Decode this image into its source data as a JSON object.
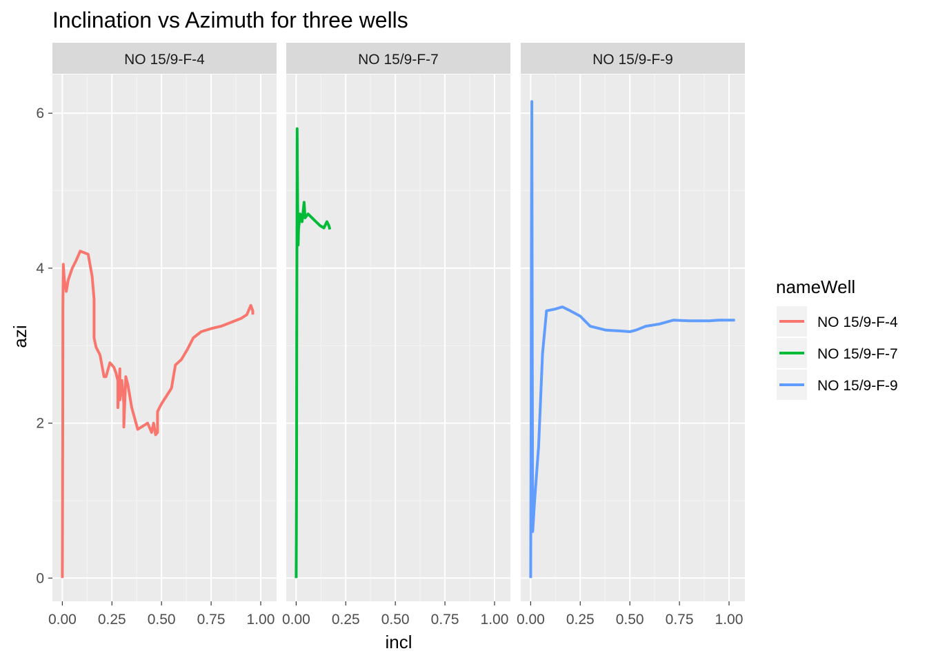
{
  "chart_data": {
    "type": "line",
    "title": "Inclination vs Azimuth for three wells",
    "xlabel": "incl",
    "ylabel": "azi",
    "xlim": [
      -0.05,
      1.08
    ],
    "ylim": [
      -0.3,
      6.5
    ],
    "x_ticks": [
      0,
      0.25,
      0.5,
      0.75,
      1.0
    ],
    "x_tick_labels": [
      "0.00",
      "0.25",
      "0.50",
      "0.75",
      "1.00"
    ],
    "y_ticks": [
      0,
      2,
      4,
      6
    ],
    "y_tick_labels": [
      "0",
      "2",
      "4",
      "6"
    ],
    "grid": true,
    "legend": {
      "title": "nameWell",
      "position": "right"
    },
    "facets": [
      "NO 15/9-F-4",
      "NO 15/9-F-7",
      "NO 15/9-F-9"
    ],
    "series": [
      {
        "name": "NO 15/9-F-4",
        "color": "#F8766D",
        "points": [
          [
            0,
            0
          ],
          [
            0.001,
            1.0
          ],
          [
            0.002,
            2.0
          ],
          [
            0.003,
            3.5
          ],
          [
            0.005,
            4.05
          ],
          [
            0.01,
            3.85
          ],
          [
            0.02,
            3.7
          ],
          [
            0.03,
            3.85
          ],
          [
            0.05,
            4.0
          ],
          [
            0.07,
            4.1
          ],
          [
            0.09,
            4.22
          ],
          [
            0.11,
            4.2
          ],
          [
            0.13,
            4.18
          ],
          [
            0.15,
            3.9
          ],
          [
            0.16,
            3.6
          ],
          [
            0.16,
            3.1
          ],
          [
            0.17,
            2.98
          ],
          [
            0.19,
            2.88
          ],
          [
            0.21,
            2.6
          ],
          [
            0.22,
            2.6
          ],
          [
            0.24,
            2.78
          ],
          [
            0.26,
            2.72
          ],
          [
            0.27,
            2.65
          ],
          [
            0.28,
            2.55
          ],
          [
            0.28,
            2.2
          ],
          [
            0.29,
            2.7
          ],
          [
            0.29,
            2.3
          ],
          [
            0.3,
            2.55
          ],
          [
            0.31,
            2.25
          ],
          [
            0.31,
            1.95
          ],
          [
            0.32,
            2.6
          ],
          [
            0.33,
            2.5
          ],
          [
            0.35,
            2.2
          ],
          [
            0.38,
            1.92
          ],
          [
            0.43,
            2.0
          ],
          [
            0.45,
            1.88
          ],
          [
            0.46,
            2.0
          ],
          [
            0.47,
            1.85
          ],
          [
            0.48,
            1.88
          ],
          [
            0.48,
            2.15
          ],
          [
            0.5,
            2.25
          ],
          [
            0.55,
            2.45
          ],
          [
            0.57,
            2.75
          ],
          [
            0.6,
            2.82
          ],
          [
            0.63,
            2.95
          ],
          [
            0.66,
            3.1
          ],
          [
            0.7,
            3.18
          ],
          [
            0.75,
            3.22
          ],
          [
            0.8,
            3.25
          ],
          [
            0.9,
            3.35
          ],
          [
            0.93,
            3.4
          ],
          [
            0.95,
            3.52
          ],
          [
            0.96,
            3.45
          ],
          [
            0.96,
            3.4
          ]
        ]
      },
      {
        "name": "NO 15/9-F-7",
        "color": "#00BA38",
        "points": [
          [
            0,
            0
          ],
          [
            0.001,
            0.6
          ],
          [
            0.002,
            1.5
          ],
          [
            0.003,
            3.0
          ],
          [
            0.004,
            4.2
          ],
          [
            0.005,
            5.8
          ],
          [
            0.007,
            5.0
          ],
          [
            0.008,
            4.6
          ],
          [
            0.01,
            4.3
          ],
          [
            0.012,
            4.5
          ],
          [
            0.02,
            4.7
          ],
          [
            0.03,
            4.6
          ],
          [
            0.04,
            4.85
          ],
          [
            0.045,
            4.65
          ],
          [
            0.06,
            4.7
          ],
          [
            0.08,
            4.65
          ],
          [
            0.1,
            4.6
          ],
          [
            0.12,
            4.55
          ],
          [
            0.14,
            4.52
          ],
          [
            0.155,
            4.6
          ],
          [
            0.165,
            4.55
          ],
          [
            0.17,
            4.5
          ]
        ]
      },
      {
        "name": "NO 15/9-F-9",
        "color": "#619CFF",
        "points": [
          [
            0,
            0
          ],
          [
            0.002,
            2.0
          ],
          [
            0.004,
            4.5
          ],
          [
            0.006,
            6.15
          ],
          [
            0.008,
            3.0
          ],
          [
            0.01,
            0.6
          ],
          [
            0.02,
            1.0
          ],
          [
            0.04,
            1.7
          ],
          [
            0.06,
            2.9
          ],
          [
            0.08,
            3.45
          ],
          [
            0.12,
            3.47
          ],
          [
            0.16,
            3.5
          ],
          [
            0.2,
            3.45
          ],
          [
            0.25,
            3.38
          ],
          [
            0.3,
            3.25
          ],
          [
            0.38,
            3.2
          ],
          [
            0.45,
            3.19
          ],
          [
            0.5,
            3.18
          ],
          [
            0.53,
            3.2
          ],
          [
            0.58,
            3.25
          ],
          [
            0.65,
            3.28
          ],
          [
            0.72,
            3.33
          ],
          [
            0.8,
            3.32
          ],
          [
            0.9,
            3.32
          ],
          [
            0.95,
            3.33
          ],
          [
            1.03,
            3.33
          ]
        ]
      }
    ]
  }
}
